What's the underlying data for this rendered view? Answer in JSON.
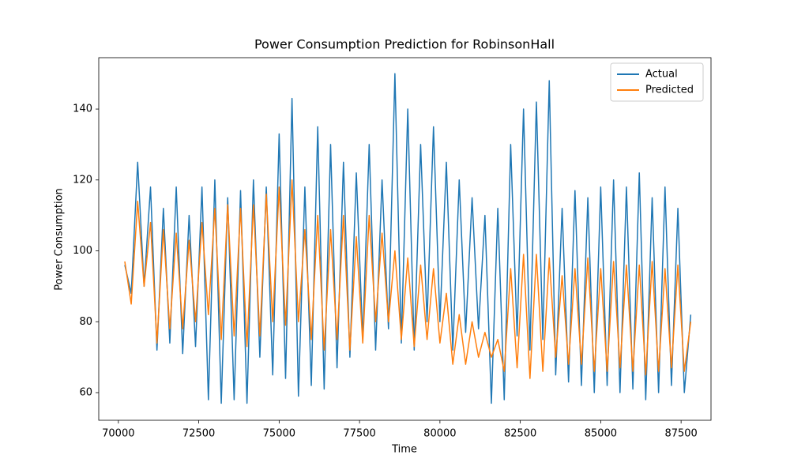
{
  "chart_data": {
    "type": "line",
    "title": "Power Consumption Prediction for RobinsonHall",
    "x_label": "Time",
    "y_label": "Power Consumption",
    "x": [
      70200,
      70400,
      70600,
      70800,
      71000,
      71200,
      71400,
      71600,
      71800,
      72000,
      72200,
      72400,
      72600,
      72800,
      73000,
      73200,
      73400,
      73600,
      73800,
      74000,
      74200,
      74400,
      74600,
      74800,
      75000,
      75200,
      75400,
      75600,
      75800,
      76000,
      76200,
      76400,
      76600,
      76800,
      77000,
      77200,
      77400,
      77600,
      77800,
      78000,
      78200,
      78400,
      78600,
      78800,
      79000,
      79200,
      79400,
      79600,
      79800,
      80000,
      80200,
      80400,
      80600,
      80800,
      81000,
      81200,
      81400,
      81600,
      81800,
      82000,
      82200,
      82400,
      82600,
      82800,
      83000,
      83200,
      83400,
      83600,
      83800,
      84000,
      84200,
      84400,
      84600,
      84800,
      85000,
      85200,
      85400,
      85600,
      85800,
      86000,
      86200,
      86400,
      86600,
      86800,
      87000,
      87200,
      87400,
      87600,
      87800
    ],
    "series": [
      {
        "name": "Actual",
        "color": "#1f77b4",
        "values": [
          96,
          88,
          125,
          90,
          118,
          72,
          112,
          74,
          118,
          71,
          110,
          73,
          118,
          58,
          120,
          57,
          115,
          58,
          117,
          57,
          120,
          70,
          118,
          65,
          133,
          64,
          143,
          59,
          118,
          62,
          135,
          61,
          130,
          67,
          125,
          70,
          122,
          75,
          130,
          72,
          120,
          78,
          150,
          74,
          140,
          72,
          130,
          80,
          135,
          80,
          125,
          72,
          120,
          77,
          115,
          78,
          110,
          57,
          112,
          58,
          130,
          76,
          140,
          72,
          142,
          75,
          148,
          65,
          112,
          63,
          117,
          62,
          115,
          60,
          118,
          62,
          120,
          60,
          118,
          61,
          122,
          58,
          115,
          60,
          118,
          62,
          112,
          60,
          82
        ]
      },
      {
        "name": "Predicted",
        "color": "#ff7f0e",
        "values": [
          97,
          85,
          114,
          90,
          108,
          74,
          106,
          78,
          105,
          78,
          103,
          80,
          108,
          82,
          112,
          75,
          113,
          76,
          112,
          73,
          113,
          76,
          116,
          80,
          118,
          79,
          120,
          80,
          106,
          75,
          110,
          72,
          106,
          75,
          110,
          72,
          104,
          74,
          110,
          80,
          105,
          80,
          100,
          75,
          98,
          73,
          96,
          75,
          95,
          74,
          88,
          68,
          82,
          68,
          80,
          70,
          77,
          70,
          75,
          66,
          95,
          67,
          99,
          64,
          99,
          66,
          98,
          70,
          93,
          68,
          95,
          68,
          98,
          66,
          95,
          66,
          97,
          67,
          96,
          66,
          96,
          65,
          97,
          66,
          95,
          67,
          96,
          66,
          80
        ]
      }
    ],
    "xlim": [
      69390,
      88430
    ],
    "ylim": [
      52.2,
      154.5
    ],
    "xticks": [
      70000,
      72500,
      75000,
      77500,
      80000,
      82500,
      85000,
      87500
    ],
    "yticks": [
      60,
      80,
      100,
      120,
      140
    ],
    "grid": false,
    "legend": "upper right"
  }
}
